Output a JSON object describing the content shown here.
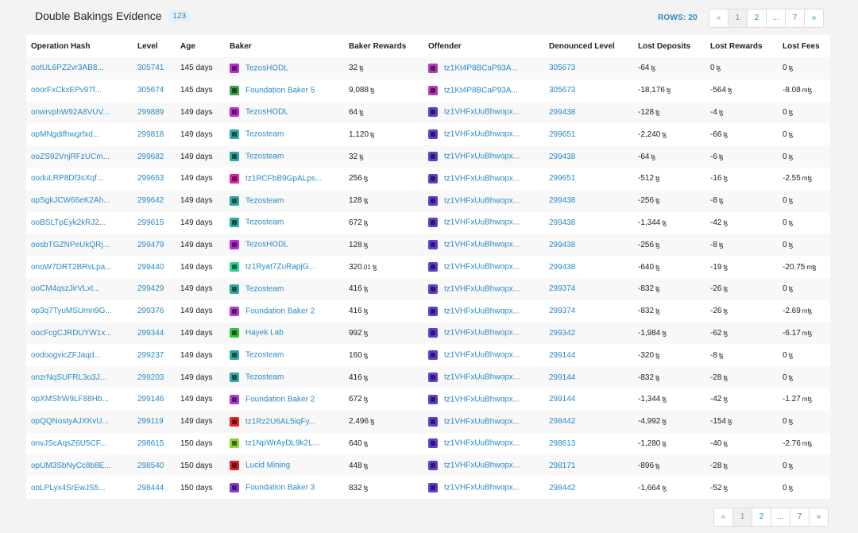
{
  "header": {
    "title": "Double Bakings Evidence",
    "count": "123",
    "rows_label": "ROWS: 20"
  },
  "pagination": {
    "prev": "«",
    "pages": [
      "1",
      "2",
      "...",
      "7"
    ],
    "next": "»"
  },
  "columns": [
    "Operation Hash",
    "Level",
    "Age",
    "Baker",
    "Baker Rewards",
    "Offender",
    "Denounced Level",
    "Lost Deposits",
    "Lost Rewards",
    "Lost Fees"
  ],
  "currency_symbol": "ꜩ",
  "avatar_colors": {
    "TezosHODL": "#b82cd6",
    "Foundation Baker 5": "#3aa04a",
    "Tezosteam": "#2fa6a0",
    "tz1RCFbB9GpALps...": "#e01fa8",
    "tz1Ryat7ZuRapjG...": "#2fd08f",
    "Foundation Baker 2": "#b03bd0",
    "Hayek Lab": "#33c23d",
    "tz1Rz2U6AL5iqFy...": "#e0262a",
    "tz1NpWrAyDL9k2L...": "#8fd22b",
    "Lucid Mining": "#d8202a",
    "Foundation Baker 3": "#8a3bd6",
    "tz1Kt4P8BCaP93A...": "#b23bb8",
    "tz1VHFxUuBhwopx...": "#5b3fcf"
  },
  "rows": [
    {
      "hash": "ootUL6PZ2vr3AB8...",
      "level": "305741",
      "age": "145 days",
      "baker": "TezosHODL",
      "rewards": "32",
      "rewards_dec": "",
      "offender": "tz1Kt4P8BCaP93A...",
      "denounced": "305673",
      "lost_deposits": "-64",
      "lost_rewards": "0",
      "lost_fees": "0",
      "lost_fees_unit": "ꜩ"
    },
    {
      "hash": "ooorFxCkxEPv97f...",
      "level": "305674",
      "age": "145 days",
      "baker": "Foundation Baker 5",
      "rewards": "9,088",
      "rewards_dec": "",
      "offender": "tz1Kt4P8BCaP93A...",
      "denounced": "305673",
      "lost_deposits": "-18,176",
      "lost_rewards": "-564",
      "lost_fees": "-8.08",
      "lost_fees_unit": "mꜩ"
    },
    {
      "hash": "onwrvphW92A8VUV...",
      "level": "299889",
      "age": "149 days",
      "baker": "TezosHODL",
      "rewards": "64",
      "rewards_dec": "",
      "offender": "tz1VHFxUuBhwopx...",
      "denounced": "299438",
      "lost_deposits": "-128",
      "lost_rewards": "-4",
      "lost_fees": "0",
      "lost_fees_unit": "ꜩ"
    },
    {
      "hash": "opMNgdifhwgrfxd...",
      "level": "299818",
      "age": "149 days",
      "baker": "Tezosteam",
      "rewards": "1,120",
      "rewards_dec": "",
      "offender": "tz1VHFxUuBhwopx...",
      "denounced": "299651",
      "lost_deposits": "-2,240",
      "lost_rewards": "-66",
      "lost_fees": "0",
      "lost_fees_unit": "ꜩ"
    },
    {
      "hash": "ooZS92VnjRFzUCm...",
      "level": "299682",
      "age": "149 days",
      "baker": "Tezosteam",
      "rewards": "32",
      "rewards_dec": "",
      "offender": "tz1VHFxUuBhwopx...",
      "denounced": "299438",
      "lost_deposits": "-64",
      "lost_rewards": "-6",
      "lost_fees": "0",
      "lost_fees_unit": "ꜩ"
    },
    {
      "hash": "ooduLRP8Df3sXqf...",
      "level": "299653",
      "age": "149 days",
      "baker": "tz1RCFbB9GpALps...",
      "rewards": "256",
      "rewards_dec": "",
      "offender": "tz1VHFxUuBhwopx...",
      "denounced": "299651",
      "lost_deposits": "-512",
      "lost_rewards": "-16",
      "lost_fees": "-2.55",
      "lost_fees_unit": "mꜩ"
    },
    {
      "hash": "opSgkJCW66eK2Ah...",
      "level": "299642",
      "age": "149 days",
      "baker": "Tezosteam",
      "rewards": "128",
      "rewards_dec": "",
      "offender": "tz1VHFxUuBhwopx...",
      "denounced": "299438",
      "lost_deposits": "-256",
      "lost_rewards": "-8",
      "lost_fees": "0",
      "lost_fees_unit": "ꜩ"
    },
    {
      "hash": "ooBSLTpEyk2kRJ2...",
      "level": "299615",
      "age": "149 days",
      "baker": "Tezosteam",
      "rewards": "672",
      "rewards_dec": "",
      "offender": "tz1VHFxUuBhwopx...",
      "denounced": "299438",
      "lost_deposits": "-1,344",
      "lost_rewards": "-42",
      "lost_fees": "0",
      "lost_fees_unit": "ꜩ"
    },
    {
      "hash": "oosbTGZNPeUkQRj...",
      "level": "299479",
      "age": "149 days",
      "baker": "TezosHODL",
      "rewards": "128",
      "rewards_dec": "",
      "offender": "tz1VHFxUuBhwopx...",
      "denounced": "299438",
      "lost_deposits": "-256",
      "lost_rewards": "-8",
      "lost_fees": "0",
      "lost_fees_unit": "ꜩ"
    },
    {
      "hash": "onoW7DRT2BRvLpa...",
      "level": "299440",
      "age": "149 days",
      "baker": "tz1Ryat7ZuRapjG...",
      "rewards": "320",
      "rewards_dec": ".01",
      "offender": "tz1VHFxUuBhwopx...",
      "denounced": "299438",
      "lost_deposits": "-640",
      "lost_rewards": "-19",
      "lost_fees": "-20.75",
      "lost_fees_unit": "mꜩ"
    },
    {
      "hash": "ooCM4qszJirVLxt...",
      "level": "299429",
      "age": "149 days",
      "baker": "Tezosteam",
      "rewards": "416",
      "rewards_dec": "",
      "offender": "tz1VHFxUuBhwopx...",
      "denounced": "299374",
      "lost_deposits": "-832",
      "lost_rewards": "-26",
      "lost_fees": "0",
      "lost_fees_unit": "ꜩ"
    },
    {
      "hash": "op3q7TyuMSUmn9G...",
      "level": "299376",
      "age": "149 days",
      "baker": "Foundation Baker 2",
      "rewards": "416",
      "rewards_dec": "",
      "offender": "tz1VHFxUuBhwopx...",
      "denounced": "299374",
      "lost_deposits": "-832",
      "lost_rewards": "-26",
      "lost_fees": "-2.69",
      "lost_fees_unit": "mꜩ"
    },
    {
      "hash": "oocFcgCJRDUYW1x...",
      "level": "299344",
      "age": "149 days",
      "baker": "Hayek Lab",
      "rewards": "992",
      "rewards_dec": "",
      "offender": "tz1VHFxUuBhwopx...",
      "denounced": "299342",
      "lost_deposits": "-1,984",
      "lost_rewards": "-62",
      "lost_fees": "-6.17",
      "lost_fees_unit": "mꜩ"
    },
    {
      "hash": "oodoogvicZFJaqd...",
      "level": "299237",
      "age": "149 days",
      "baker": "Tezosteam",
      "rewards": "160",
      "rewards_dec": "",
      "offender": "tz1VHFxUuBhwopx...",
      "denounced": "299144",
      "lost_deposits": "-320",
      "lost_rewards": "-8",
      "lost_fees": "0",
      "lost_fees_unit": "ꜩ"
    },
    {
      "hash": "onzrNqSUFRL3o3J...",
      "level": "299203",
      "age": "149 days",
      "baker": "Tezosteam",
      "rewards": "416",
      "rewards_dec": "",
      "offender": "tz1VHFxUuBhwopx...",
      "denounced": "299144",
      "lost_deposits": "-832",
      "lost_rewards": "-28",
      "lost_fees": "0",
      "lost_fees_unit": "ꜩ"
    },
    {
      "hash": "opXMSfrW9LF88Hb...",
      "level": "299146",
      "age": "149 days",
      "baker": "Foundation Baker 2",
      "rewards": "672",
      "rewards_dec": "",
      "offender": "tz1VHFxUuBhwopx...",
      "denounced": "299144",
      "lost_deposits": "-1,344",
      "lost_rewards": "-42",
      "lost_fees": "-1.27",
      "lost_fees_unit": "mꜩ"
    },
    {
      "hash": "opQQNostyAJXKvU...",
      "level": "299119",
      "age": "149 days",
      "baker": "tz1Rz2U6AL5iqFy...",
      "rewards": "2,496",
      "rewards_dec": "",
      "offender": "tz1VHFxUuBhwopx...",
      "denounced": "298442",
      "lost_deposits": "-4,992",
      "lost_rewards": "-154",
      "lost_fees": "0",
      "lost_fees_unit": "ꜩ"
    },
    {
      "hash": "onvJScAqsZ6U5CF...",
      "level": "298615",
      "age": "150 days",
      "baker": "tz1NpWrAyDL9k2L...",
      "rewards": "640",
      "rewards_dec": "",
      "offender": "tz1VHFxUuBhwopx...",
      "denounced": "298613",
      "lost_deposits": "-1,280",
      "lost_rewards": "-40",
      "lost_fees": "-2.76",
      "lost_fees_unit": "mꜩ"
    },
    {
      "hash": "opUM3SbNyCc8b8E...",
      "level": "298540",
      "age": "150 days",
      "baker": "Lucid Mining",
      "rewards": "448",
      "rewards_dec": "",
      "offender": "tz1VHFxUuBhwopx...",
      "denounced": "298171",
      "lost_deposits": "-896",
      "lost_rewards": "-28",
      "lost_fees": "0",
      "lost_fees_unit": "ꜩ"
    },
    {
      "hash": "ooLPLyx4SrEwJS5...",
      "level": "298444",
      "age": "150 days",
      "baker": "Foundation Baker 3",
      "rewards": "832",
      "rewards_dec": "",
      "offender": "tz1VHFxUuBhwopx...",
      "denounced": "298442",
      "lost_deposits": "-1,664",
      "lost_rewards": "-52",
      "lost_fees": "0",
      "lost_fees_unit": "ꜩ"
    }
  ]
}
